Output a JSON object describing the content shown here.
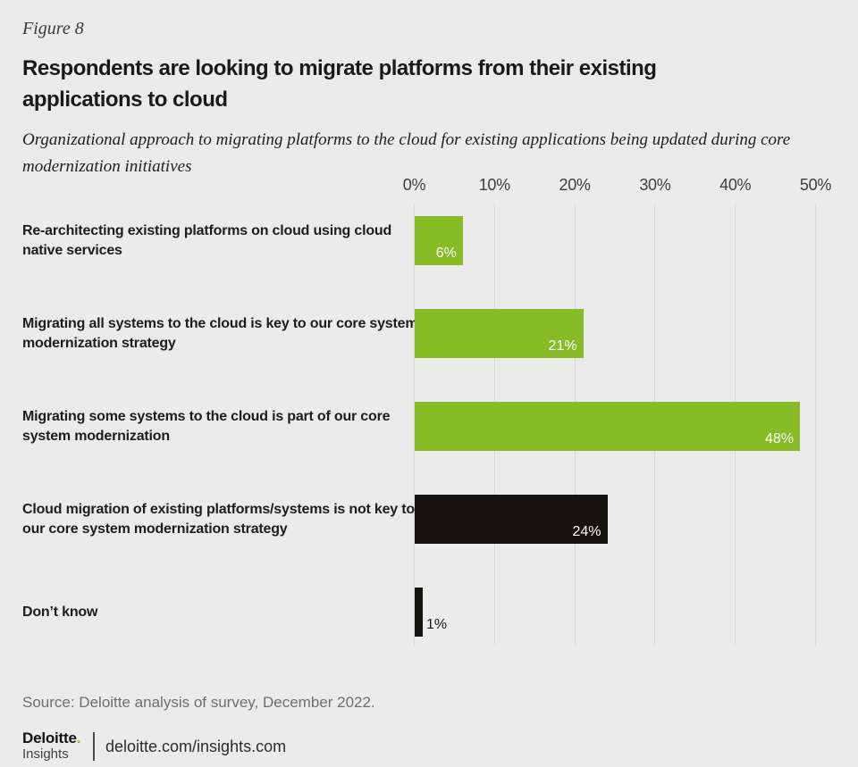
{
  "figure_label": "Figure 8",
  "title": "Respondents are looking to migrate platforms from their existing applications to cloud",
  "subtitle": "Organizational approach to migrating platforms to the cloud for existing applications being updated during core modernization initiatives",
  "source_note": "Source: Deloitte analysis of survey, December 2022.",
  "footer": {
    "brand": "Deloitte",
    "brand_dot": ".",
    "brand_sub": "Insights",
    "site": "deloitte.com/insights.com"
  },
  "colors": {
    "background": "#ebebec",
    "bar_green": "#87bc27",
    "bar_black": "#15130f",
    "gridline": "#d9d9da",
    "brand_green": "#86bc25",
    "value_label_inside": "#ffffff",
    "value_label_outside": "#1a1a18"
  },
  "chart_data": {
    "type": "bar",
    "orientation": "horizontal",
    "xlim": [
      0,
      50
    ],
    "grid": true,
    "x_ticks": [
      {
        "label": "0%",
        "value": 0
      },
      {
        "label": "10%",
        "value": 10
      },
      {
        "label": "20%",
        "value": 20
      },
      {
        "label": "30%",
        "value": 30
      },
      {
        "label": "40%",
        "value": 40
      },
      {
        "label": "50%",
        "value": 50
      }
    ],
    "rows": [
      {
        "key": "re-architecting",
        "category": "Re-architecting existing platforms on cloud using cloud native services",
        "value": 6,
        "value_label": "6%",
        "color": "bar_green"
      },
      {
        "key": "migrate-all-systems",
        "category": "Migrating all systems to the cloud is key to our core system modernization strategy",
        "value": 21,
        "value_label": "21%",
        "color": "bar_green"
      },
      {
        "key": "migrate-some-systems",
        "category": "Migrating some systems to the cloud is part of our core system modernization",
        "value": 48,
        "value_label": "48%",
        "color": "bar_green"
      },
      {
        "key": "cloud-migration-not-key",
        "category": "Cloud migration of existing platforms/systems is not key to our core system modernization strategy",
        "value": 24,
        "value_label": "24%",
        "color": "bar_black"
      },
      {
        "key": "dont-know",
        "category": "Don’t know",
        "value": 1,
        "value_label": "1%",
        "color": "bar_black"
      }
    ]
  }
}
